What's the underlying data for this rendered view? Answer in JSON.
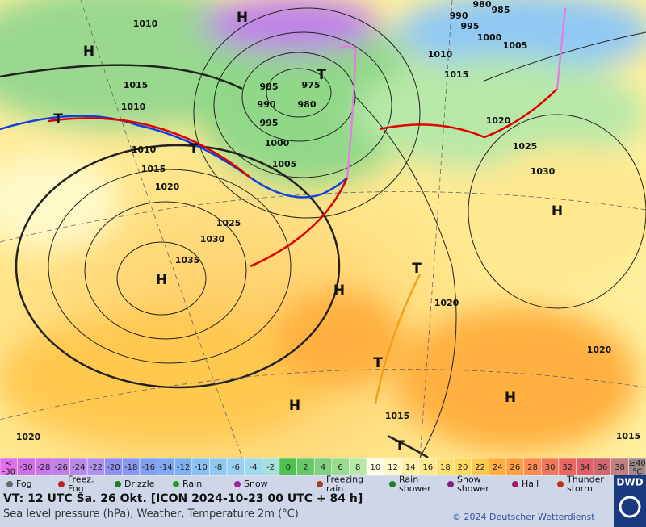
{
  "map": {
    "labels": [
      "H",
      "H",
      "1010",
      "1010",
      "1015",
      "1015",
      "1010",
      "985",
      "975",
      "980",
      "990",
      "995",
      "T",
      "1000",
      "1005",
      "1010",
      "1015",
      "1020",
      "1025",
      "1030",
      "1035",
      "H",
      "1020",
      "1025",
      "1030",
      "H",
      "H",
      "T",
      "1020",
      "T",
      "1015",
      "H",
      "H",
      "1020",
      "1020",
      "T",
      "1015",
      "990",
      "995",
      "1000",
      "1005",
      "980",
      "985",
      "T",
      "T"
    ]
  },
  "colorbar": {
    "labels": [
      "<\n-30",
      "-30",
      "-28",
      "-26",
      "-24",
      "-22",
      "-20",
      "-18",
      "-16",
      "-14",
      "-12",
      "-10",
      "-8",
      "-6",
      "-4",
      "-2",
      "0",
      "2",
      "4",
      "6",
      "8",
      "10",
      "12",
      "14",
      "16",
      "18",
      "20",
      "22",
      "24",
      "26",
      "28",
      "30",
      "32",
      "34",
      "36",
      "38",
      "≥40\n°C"
    ],
    "colors": [
      "#e070e8",
      "#d070e8",
      "#c878e8",
      "#c080e8",
      "#b888ec",
      "#b090ee",
      "#9090f0",
      "#8898f0",
      "#80a0f2",
      "#80a8f4",
      "#80b0f4",
      "#88c0f4",
      "#90c8f4",
      "#98d0f0",
      "#a0d8ec",
      "#a8e0e0",
      "#50c050",
      "#68c868",
      "#80d080",
      "#98dc90",
      "#b8e8a8",
      "#ffffe8",
      "#fff8c8",
      "#fff0a8",
      "#ffe890",
      "#ffe070",
      "#ffd860",
      "#ffc850",
      "#ffb040",
      "#ffa040",
      "#ff8c50",
      "#f07858",
      "#e86860",
      "#e06068",
      "#d06870",
      "#c08080",
      "#a08888"
    ]
  },
  "legend": [
    "Fog",
    "Freez.\nFog",
    "Drizzle",
    "Rain",
    "Snow",
    "Freezing\nrain",
    "Rain\nshower",
    "Snow\nshower",
    "Hail",
    "Thunder\nstorm"
  ],
  "footer": {
    "line1": "VT: 12 UTC Sa.  26 Okt. [ICON 2024-10-23  00 UTC + 84 h]",
    "line2": "Sea level pressure (hPa), Weather, Temperature 2m (°C)",
    "copyright": "© 2024 Deutscher Wetterdienst",
    "logo": "DWD"
  }
}
